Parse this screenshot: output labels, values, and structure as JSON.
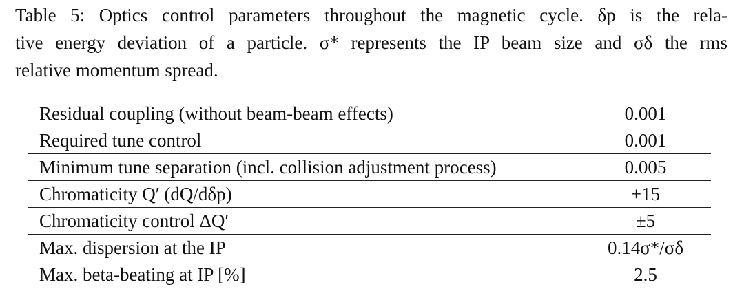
{
  "caption": {
    "line1": "Table 5: Optics control parameters throughout the magnetic cycle. δp is the rela-",
    "line2": "tive energy deviation of a particle. σ* represents the IP beam size and σδ the rms",
    "line3": "relative momentum spread."
  },
  "table": {
    "rows": [
      {
        "label": "Residual coupling (without beam-beam effects)",
        "value": "0.001"
      },
      {
        "label": "Required tune control",
        "value": "0.001"
      },
      {
        "label": "Minimum tune separation (incl. collision adjustment process)",
        "value": "0.005"
      },
      {
        "label": "Chromaticity Q′ (dQ/dδp)",
        "value": "+15"
      },
      {
        "label": "Chromaticity control ΔQ′",
        "value": "±5"
      },
      {
        "label": "Max. dispersion at the IP",
        "value": "0.14σ*/σδ"
      },
      {
        "label": "Max. beta-beating at IP [%]",
        "value": "2.5"
      }
    ]
  }
}
